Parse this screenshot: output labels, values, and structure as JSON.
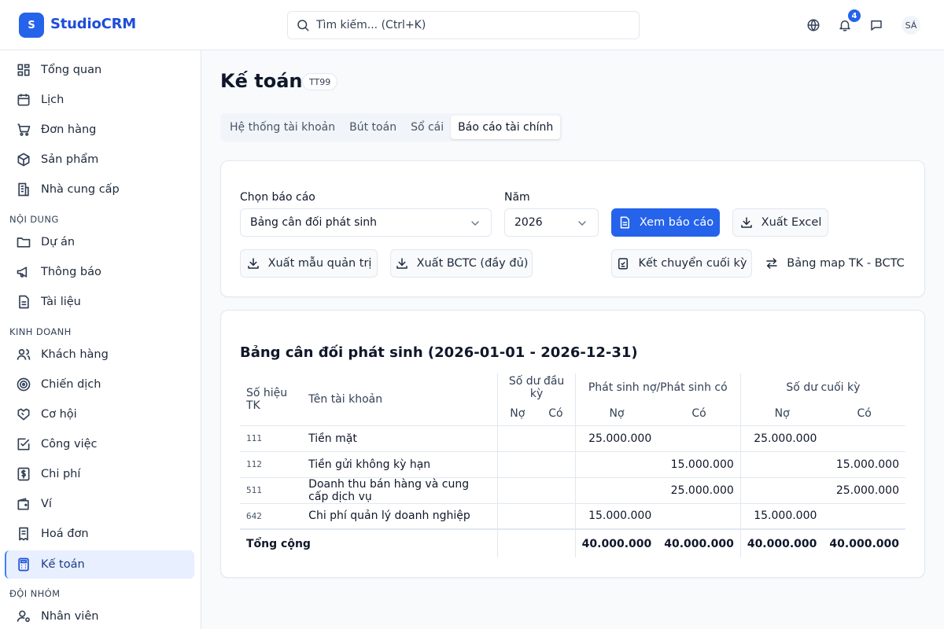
{
  "app": {
    "logo_letter": "S",
    "name": "StudioCRM"
  },
  "search": {
    "placeholder": "Tìm kiếm... (Ctrl+K)"
  },
  "topbar": {
    "notification_count": "4",
    "avatar_initials": "SÁ"
  },
  "sidebar": {
    "items_top": [
      {
        "label": "Tổng quan",
        "icon": "dashboard-icon"
      },
      {
        "label": "Lịch",
        "icon": "calendar-icon"
      },
      {
        "label": "Đơn hàng",
        "icon": "cart-icon"
      },
      {
        "label": "Sản phẩm",
        "icon": "box-icon"
      },
      {
        "label": "Nhà cung cấp",
        "icon": "building-icon"
      }
    ],
    "section_content": "NỘI DUNG",
    "items_content": [
      {
        "label": "Dự án",
        "icon": "folder-icon"
      },
      {
        "label": "Thông báo",
        "icon": "megaphone-icon"
      },
      {
        "label": "Tài liệu",
        "icon": "document-icon"
      }
    ],
    "section_business": "KINH DOANH",
    "items_business": [
      {
        "label": "Khách hàng",
        "icon": "users-icon"
      },
      {
        "label": "Chiến dịch",
        "icon": "target-icon"
      },
      {
        "label": "Cơ hội",
        "icon": "handshake-icon"
      },
      {
        "label": "Công việc",
        "icon": "checkbox-icon"
      },
      {
        "label": "Chi phí",
        "icon": "dollar-icon"
      },
      {
        "label": "Ví",
        "icon": "wallet-icon"
      },
      {
        "label": "Hoá đơn",
        "icon": "receipt-icon"
      },
      {
        "label": "Kế toán",
        "icon": "calculator-icon",
        "active": true
      }
    ],
    "section_team": "ĐỘI NHÓM",
    "items_team": [
      {
        "label": "Nhân viên",
        "icon": "user-settings-icon"
      }
    ]
  },
  "page": {
    "title": "Kế toán",
    "tag": "TT99"
  },
  "tabs": [
    {
      "label": "Hệ thống tài khoản"
    },
    {
      "label": "Bút toán"
    },
    {
      "label": "Sổ cái"
    },
    {
      "label": "Báo cáo tài chính",
      "active": true
    }
  ],
  "filters": {
    "report_label": "Chọn báo cáo",
    "report_value": "Bảng cân đối phát sinh",
    "year_label": "Năm",
    "year_value": "2026",
    "view_button": "Xem báo cáo",
    "excel_button": "Xuất Excel",
    "mgmt_template_button": "Xuất mẫu quản trị",
    "full_report_button": "Xuất BCTC (đầy đủ)",
    "closing_button": "Kết chuyển cuối kỳ",
    "mapping_button": "Bảng map TK - BCTC"
  },
  "report": {
    "title": "Bảng cân đối phát sinh (2026-01-01 - 2026-12-31)",
    "headers": {
      "account_no": "Số hiệu TK",
      "account_name": "Tên tài khoản",
      "opening": "Số dư đầu kỳ",
      "movement": "Phát sinh nợ/Phát sinh có",
      "closing": "Số dư cuối kỳ",
      "debit": "Nợ",
      "credit": "Có"
    },
    "rows": [
      {
        "code": "111",
        "name": "Tiền mặt",
        "open_debit": "",
        "open_credit": "",
        "mov_debit": "25.000.000",
        "mov_credit": "",
        "close_debit": "25.000.000",
        "close_credit": ""
      },
      {
        "code": "112",
        "name": "Tiền gửi không kỳ hạn",
        "open_debit": "",
        "open_credit": "",
        "mov_debit": "",
        "mov_credit": "15.000.000",
        "close_debit": "",
        "close_credit": "15.000.000"
      },
      {
        "code": "511",
        "name": "Doanh thu bán hàng và cung cấp dịch vụ",
        "open_debit": "",
        "open_credit": "",
        "mov_debit": "",
        "mov_credit": "25.000.000",
        "close_debit": "",
        "close_credit": "25.000.000"
      },
      {
        "code": "642",
        "name": "Chi phí quản lý doanh nghiệp",
        "open_debit": "",
        "open_credit": "",
        "mov_debit": "15.000.000",
        "mov_credit": "",
        "close_debit": "15.000.000",
        "close_credit": ""
      }
    ],
    "total": {
      "label": "Tổng cộng",
      "open_debit": "",
      "open_credit": "",
      "mov_debit": "40.000.000",
      "mov_credit": "40.000.000",
      "close_debit": "40.000.000",
      "close_credit": "40.000.000"
    }
  }
}
